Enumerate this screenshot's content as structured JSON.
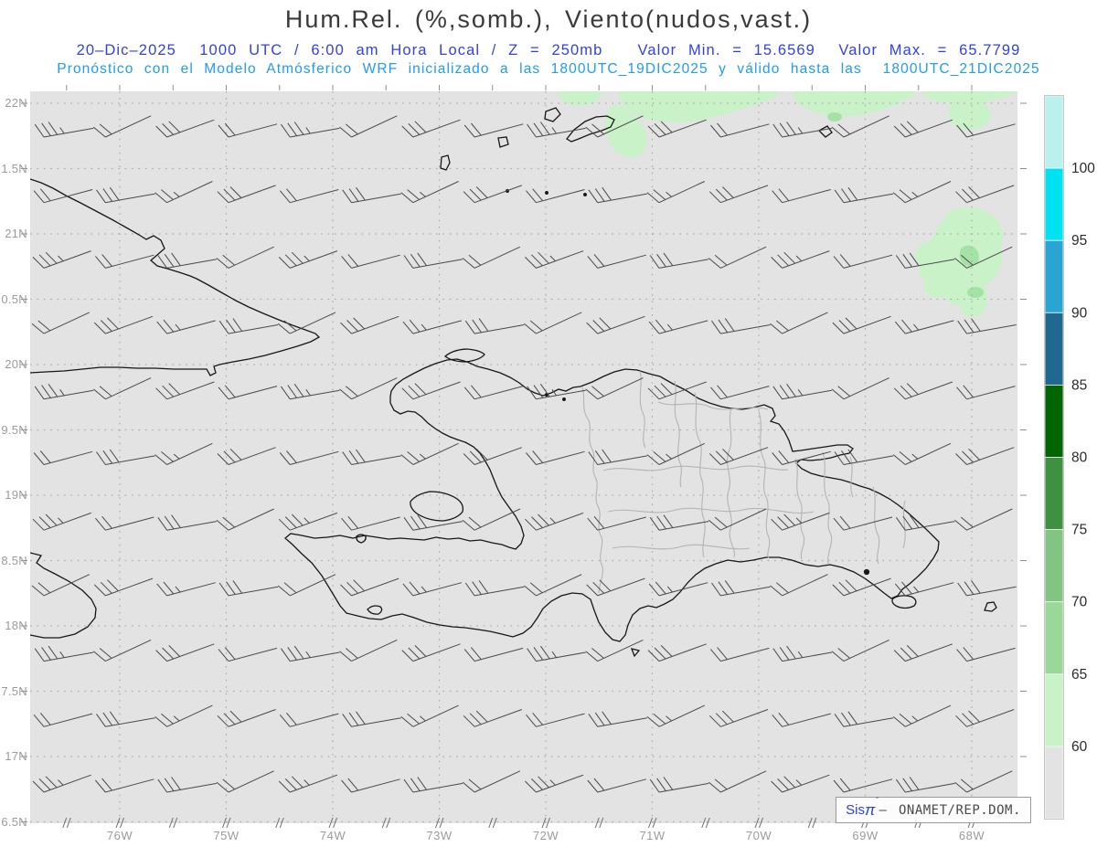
{
  "header": {
    "title": "Hum.Rel. (%,somb.), Viento(nudos,vast.)",
    "title_color": "#3a3a3a",
    "line2": "20–Dic–2025  1000 UTC / 6:00 am Hora Local / Z = 250mb   Valor Min. = 15.6569  Valor Max. = 65.7799",
    "line2_color": "#3341e4",
    "line3": "Pronóstico con el Modelo Atmósferico WRF inicializado a las 1800UTC_19DIC2025 y válido hasta las  1800UTC_21DIC2025",
    "line3_color": "#219cf0"
  },
  "map": {
    "bg_color": "#e3e3e3",
    "lat_labels": [
      "22N",
      "1.5N",
      "21N",
      "0.5N",
      "20N",
      "9.5N",
      "19N",
      "8.5N",
      "18N",
      "7.5N",
      "17N",
      "6.5N"
    ],
    "lon_labels": [
      "76W",
      "75W",
      "74W",
      "73W",
      "72W",
      "71W",
      "70W",
      "69W",
      "68W"
    ],
    "axis_label_color": "#9b9b9b",
    "coast_color": "#161616",
    "border_color": "#b4b4b4",
    "grid_color": "#ababab",
    "barb_color": "#4a4a4a",
    "tick_color": "#8f8f8f",
    "shade_light_green": "#c9f2c9",
    "shade_mid_green": "#a5e2a5"
  },
  "colorbar": {
    "tick_labels": [
      "100",
      "95",
      "90",
      "85",
      "80",
      "75",
      "70",
      "65",
      "60"
    ],
    "colors": [
      "#b9f1ee",
      "#00e2f2",
      "#2aa4d2",
      "#20688f",
      "#026402",
      "#3f9142",
      "#83c383",
      "#9ad89a",
      "#c9f2c9",
      "#e3e3e3"
    ],
    "label_color": "#2b2b2b"
  },
  "watermark": {
    "brand": "Sis",
    "symbol": "π",
    "accent": "´",
    "separator": "–",
    "org": " ONAMET/REP.DOM.",
    "brand_color": "#2742e6",
    "org_color": "#4a4a4a"
  }
}
